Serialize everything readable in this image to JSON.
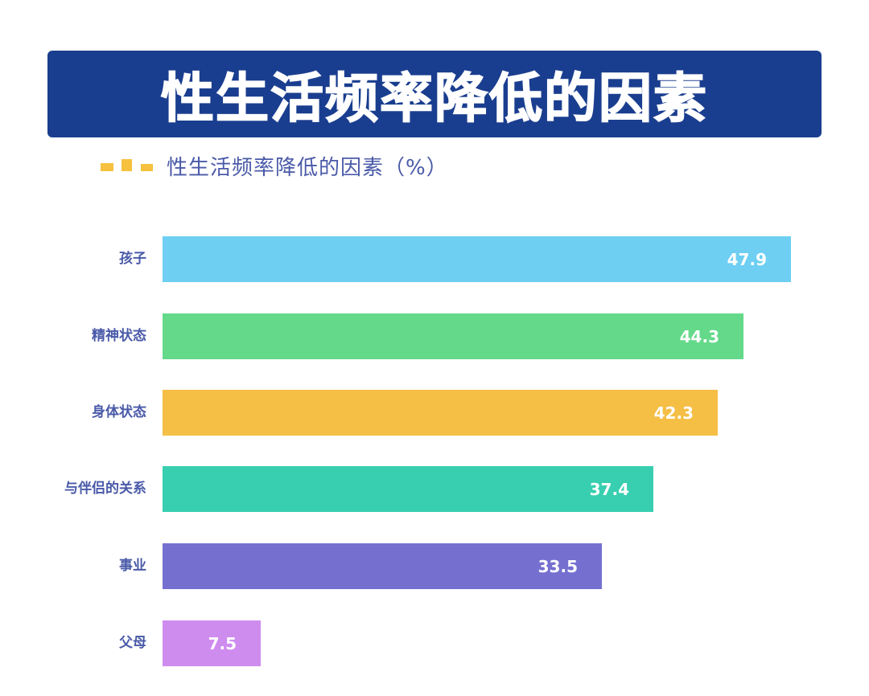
{
  "header": {
    "title": "性生活频率降低的因素"
  },
  "legend": {
    "label": "性生活频率降低的因素（%）",
    "marker_color": "#f5c13e"
  },
  "colors": {
    "banner": "#1a3e8f",
    "label_text": "#4a5aa8"
  },
  "chart_data": {
    "type": "bar",
    "orientation": "horizontal",
    "title": "性生活频率降低的因素",
    "legend": [
      "性生活频率降低的因素（%）"
    ],
    "xlabel": "",
    "ylabel": "",
    "grid": false,
    "xlim": [
      0,
      50
    ],
    "categories": [
      "孩子",
      "精神状态",
      "身体状态",
      "与伴侣的关系",
      "事业",
      "父母"
    ],
    "values": [
      47.9,
      44.3,
      42.3,
      37.4,
      33.5,
      7.5
    ],
    "value_labels": [
      "47.9",
      "44.3",
      "42.3",
      "37.4",
      "33.5",
      "7.5"
    ],
    "bar_colors": [
      "#6ecff3",
      "#64d98a",
      "#f5be45",
      "#38cfb0",
      "#7570d0",
      "#cf8cef"
    ],
    "unit": "%"
  }
}
